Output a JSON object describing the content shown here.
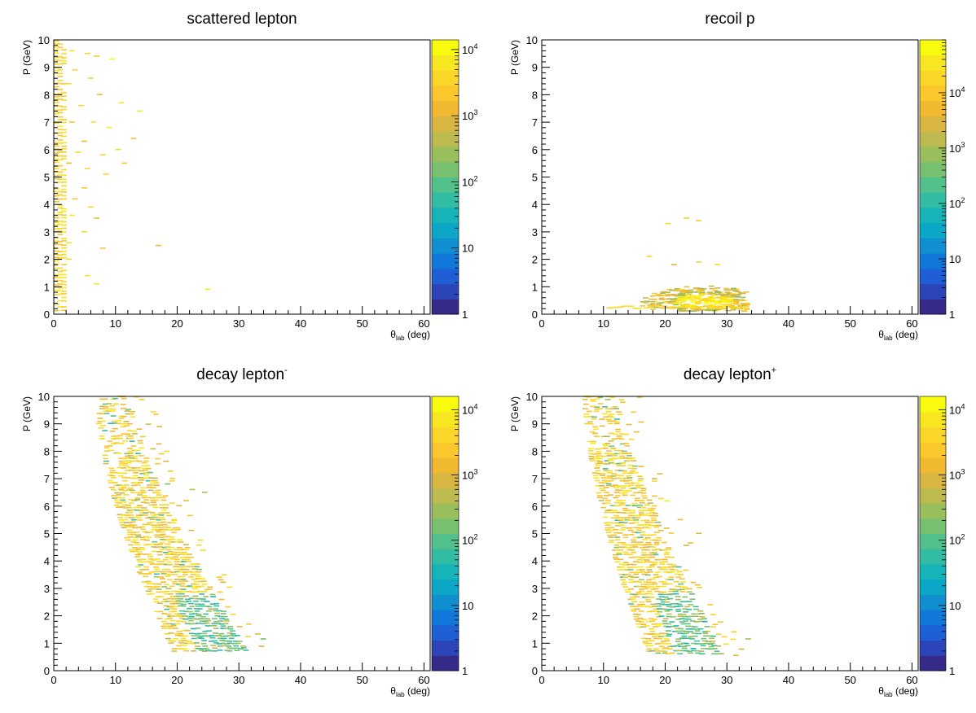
{
  "chart_data": [
    {
      "type": "heatmap",
      "title": "scattered lepton",
      "title_sup": "",
      "xlabel": {
        "main": "θ",
        "sub": "lab",
        "unit": " (deg)"
      },
      "ylabel": "P (GeV)",
      "xlim": [
        0,
        61
      ],
      "ylim": [
        0,
        10
      ],
      "xticks": [
        "0",
        "10",
        "20",
        "30",
        "40",
        "50",
        "60"
      ],
      "yticks": [
        "0",
        "1",
        "2",
        "3",
        "4",
        "5",
        "6",
        "7",
        "8",
        "9",
        "10"
      ],
      "z_scale": "log",
      "zlim": [
        1,
        14000
      ],
      "z_ticks": [
        {
          "m": "1",
          "e": ""
        },
        {
          "m": "10",
          "e": ""
        },
        {
          "m": "10",
          "e": "2"
        },
        {
          "m": "10",
          "e": "3"
        },
        {
          "m": "10",
          "e": "4"
        }
      ],
      "density": {
        "kind": "scattered",
        "theta_max_full": 1.5,
        "sparse_points": [
          [
            2.5,
            9.6
          ],
          [
            5.0,
            9.5
          ],
          [
            6.5,
            9.4
          ],
          [
            9.0,
            9.3
          ],
          [
            3.0,
            8.9
          ],
          [
            5.5,
            8.6
          ],
          [
            2.0,
            8.4
          ],
          [
            7.0,
            8.0
          ],
          [
            4.0,
            7.6
          ],
          [
            10.5,
            7.7
          ],
          [
            13.5,
            7.4
          ],
          [
            2.5,
            7.0
          ],
          [
            6.0,
            7.0
          ],
          [
            8.5,
            6.8
          ],
          [
            4.5,
            6.3
          ],
          [
            12.5,
            6.4
          ],
          [
            3.5,
            5.9
          ],
          [
            7.5,
            5.8
          ],
          [
            10.0,
            6.0
          ],
          [
            2.0,
            5.5
          ],
          [
            5.0,
            5.3
          ],
          [
            8.0,
            5.1
          ],
          [
            4.5,
            4.6
          ],
          [
            3.0,
            4.2
          ],
          [
            5.5,
            3.9
          ],
          [
            2.5,
            3.6
          ],
          [
            6.5,
            3.5
          ],
          [
            4.5,
            3.0
          ],
          [
            2.0,
            2.6
          ],
          [
            16.5,
            2.5
          ],
          [
            2.0,
            2.0
          ],
          [
            5.0,
            1.4
          ],
          [
            6.5,
            1.1
          ],
          [
            24.5,
            0.9
          ],
          [
            7.5,
            2.4
          ],
          [
            11.0,
            5.5
          ]
        ]
      }
    },
    {
      "type": "heatmap",
      "title": "recoil p",
      "title_sup": "",
      "xlabel": {
        "main": "θ",
        "sub": "lab",
        "unit": " (deg)"
      },
      "ylabel": "P (GeV)",
      "xlim": [
        0,
        61
      ],
      "ylim": [
        0,
        10
      ],
      "xticks": [
        "0",
        "10",
        "20",
        "30",
        "40",
        "50",
        "60"
      ],
      "yticks": [
        "0",
        "1",
        "2",
        "3",
        "4",
        "5",
        "6",
        "7",
        "8",
        "9",
        "10"
      ],
      "z_scale": "log",
      "zlim": [
        1,
        90000
      ],
      "z_ticks": [
        {
          "m": "1",
          "e": ""
        },
        {
          "m": "10",
          "e": ""
        },
        {
          "m": "10",
          "e": "2"
        },
        {
          "m": "10",
          "e": "3"
        },
        {
          "m": "10",
          "e": "4"
        }
      ],
      "density": {
        "kind": "blob",
        "center_theta": 26,
        "center_p": 0.45,
        "theta_range": [
          10,
          33
        ],
        "p_range": [
          0.1,
          1.3
        ],
        "sparse_points": [
          [
            20,
            3.3
          ],
          [
            23,
            3.5
          ],
          [
            25,
            3.4
          ],
          [
            17,
            2.1
          ],
          [
            21,
            1.8
          ],
          [
            28,
            1.8
          ],
          [
            25,
            1.9
          ]
        ]
      }
    },
    {
      "type": "heatmap",
      "title": "decay lepton",
      "title_sup": "-",
      "xlabel": {
        "main": "θ",
        "sub": "lab",
        "unit": " (deg)"
      },
      "ylabel": "P (GeV)",
      "xlim": [
        0,
        61
      ],
      "ylim": [
        0,
        10
      ],
      "xticks": [
        "0",
        "10",
        "20",
        "30",
        "40",
        "50",
        "60"
      ],
      "yticks": [
        "0",
        "1",
        "2",
        "3",
        "4",
        "5",
        "6",
        "7",
        "8",
        "9",
        "10"
      ],
      "z_scale": "log",
      "zlim": [
        1,
        16000
      ],
      "z_ticks": [
        {
          "m": "1",
          "e": ""
        },
        {
          "m": "10",
          "e": ""
        },
        {
          "m": "10",
          "e": "2"
        },
        {
          "m": "10",
          "e": "3"
        },
        {
          "m": "10",
          "e": "4"
        }
      ],
      "density": {
        "kind": "band",
        "theta_min_top": 7.5,
        "theta_min_bottom": 20,
        "width_top": 5,
        "width_bottom": 12,
        "p_bottom": 0.7,
        "sparse_points": [
          [
            33.5,
            1.15
          ],
          [
            22,
            6.6
          ],
          [
            24,
            6.5
          ],
          [
            18,
            6.8
          ]
        ]
      }
    },
    {
      "type": "heatmap",
      "title": "decay lepton",
      "title_sup": "+",
      "xlabel": {
        "main": "θ",
        "sub": "lab",
        "unit": " (deg)"
      },
      "ylabel": "P (GeV)",
      "xlim": [
        0,
        61
      ],
      "ylim": [
        0,
        10
      ],
      "xticks": [
        "0",
        "10",
        "20",
        "30",
        "40",
        "50",
        "60"
      ],
      "yticks": [
        "0",
        "1",
        "2",
        "3",
        "4",
        "5",
        "6",
        "7",
        "8",
        "9",
        "10"
      ],
      "z_scale": "log",
      "zlim": [
        1,
        16000
      ],
      "z_ticks": [
        {
          "m": "1",
          "e": ""
        },
        {
          "m": "10",
          "e": ""
        },
        {
          "m": "10",
          "e": "2"
        },
        {
          "m": "10",
          "e": "3"
        },
        {
          "m": "10",
          "e": "4"
        }
      ],
      "density": {
        "kind": "band",
        "theta_min_top": 7.5,
        "theta_min_bottom": 18,
        "width_top": 5,
        "width_bottom": 12,
        "p_bottom": 0.6,
        "sparse_points": [
          [
            33,
            1.15
          ],
          [
            31,
            0.55
          ],
          [
            25,
            5.0
          ],
          [
            22,
            5.5
          ]
        ]
      }
    }
  ],
  "palette": [
    "#352a87",
    "#2b44b8",
    "#1f5fd6",
    "#1078d8",
    "#0f8fd0",
    "#0ca6c7",
    "#16b3b8",
    "#32bca3",
    "#52c08b",
    "#76c070",
    "#9bbe5c",
    "#bdba4f",
    "#d9b641",
    "#f0b930",
    "#fbc72c",
    "#fad628",
    "#f8e620",
    "#f9fb0e"
  ]
}
